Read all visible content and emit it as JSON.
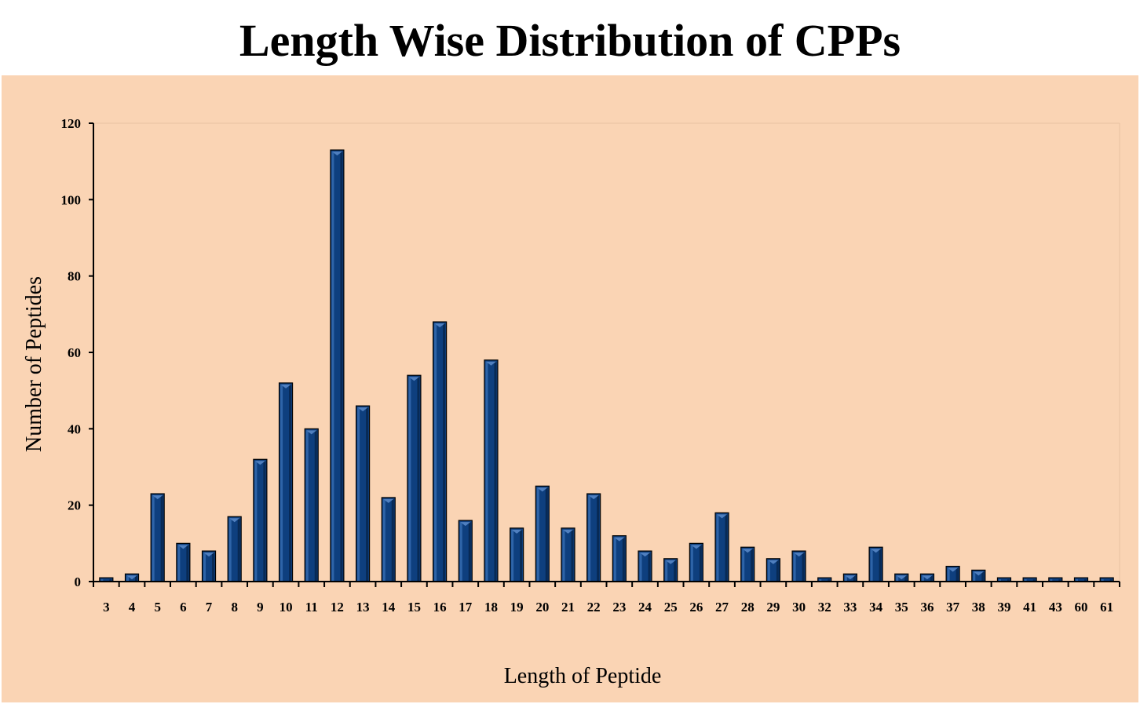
{
  "chart_data": {
    "type": "bar",
    "title": "Length Wise Distribution of CPPs",
    "xlabel": "Length of Peptide",
    "ylabel": "Number of Peptides",
    "ylim": [
      0,
      120
    ],
    "yticks": [
      0,
      20,
      40,
      60,
      80,
      100,
      120
    ],
    "grid": false,
    "legend": "none",
    "colors": {
      "bar": "#0e3f7e",
      "bar_dark": "#082a55",
      "bar_light": "#2e64a8",
      "plot_background": "#fad4b4",
      "page_background": "#ffffff"
    },
    "categories": [
      "3",
      "4",
      "5",
      "6",
      "7",
      "8",
      "9",
      "10",
      "11",
      "12",
      "13",
      "14",
      "15",
      "16",
      "17",
      "18",
      "19",
      "20",
      "21",
      "22",
      "23",
      "24",
      "25",
      "26",
      "27",
      "28",
      "29",
      "30",
      "32",
      "33",
      "34",
      "35",
      "36",
      "37",
      "38",
      "39",
      "41",
      "43",
      "60",
      "61"
    ],
    "values": [
      1,
      2,
      23,
      10,
      8,
      17,
      32,
      52,
      40,
      113,
      46,
      22,
      54,
      68,
      16,
      58,
      14,
      25,
      14,
      23,
      12,
      8,
      6,
      10,
      18,
      9,
      6,
      8,
      1,
      2,
      9,
      2,
      2,
      4,
      3,
      1,
      1,
      1,
      1,
      1
    ]
  }
}
